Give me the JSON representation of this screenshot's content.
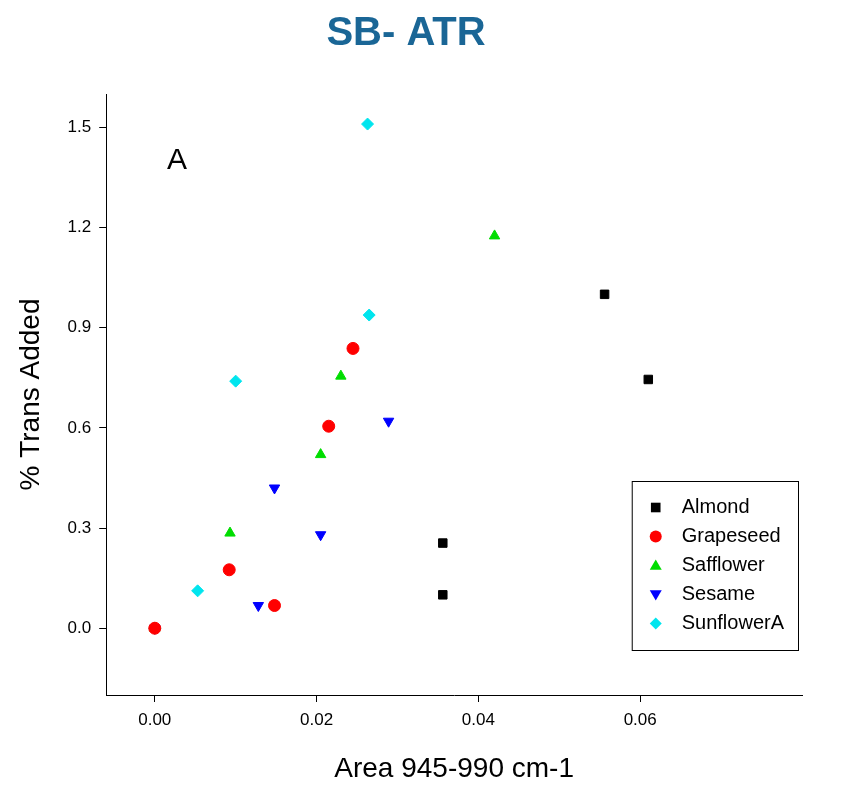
{
  "chart_data": {
    "type": "scatter",
    "title": "SB- ATR",
    "x_label": "Area 945-990 cm-1",
    "y_label": "% Trans Added",
    "xlim": [
      -0.006,
      0.08
    ],
    "ylim": [
      -0.2,
      1.6
    ],
    "xticks": [
      {
        "value": 0,
        "label": "0.00"
      },
      {
        "value": 0.02,
        "label": "0.02"
      },
      {
        "value": 0.04,
        "label": "0.04"
      },
      {
        "value": 0.06,
        "label": "0.06"
      }
    ],
    "yticks": [
      {
        "value": 0,
        "label": "0.0"
      },
      0.3,
      0.6,
      0.9,
      1.2,
      1.5
    ],
    "grid": false,
    "legend": "lower right",
    "annotations": [
      {
        "text": "A",
        "x": 0.0015,
        "y": 1.4
      }
    ],
    "series": [
      {
        "name": "Almond",
        "color": "#000000",
        "marker": "square",
        "x": [
          0.0556,
          0.061,
          0.0356,
          0.0356
        ],
        "values": [
          1.0,
          0.745,
          0.255,
          0.1
        ]
      },
      {
        "name": "Grapeseed",
        "color": "#ff0000",
        "marker": "circle",
        "x": [
          0,
          0.0092,
          0.0148,
          0.0215,
          0.0245
        ],
        "values": [
          0,
          0.175,
          0.068,
          0.605,
          0.838
        ]
      },
      {
        "name": "Safflower",
        "color": "#00dd00",
        "marker": "triangle",
        "x": [
          0,
          0.0093,
          0.0205,
          0.023,
          0.042
        ],
        "values": [
          0,
          0.285,
          0.52,
          0.755,
          1.175
        ]
      },
      {
        "name": "Sesame",
        "color": "#0000ff",
        "marker": "triangle_down",
        "x": [
          0,
          0.0128,
          0.0148,
          0.0205,
          0.0289
        ],
        "values": [
          0,
          0.068,
          0.42,
          0.28,
          0.62
        ]
      },
      {
        "name": "SunflowerA",
        "color": "#00e5ee",
        "marker": "diamond",
        "x": [
          0,
          0.0053,
          0.01,
          0.0265,
          0.0263
        ],
        "values": [
          0,
          0.112,
          0.74,
          0.938,
          1.51
        ]
      }
    ]
  }
}
